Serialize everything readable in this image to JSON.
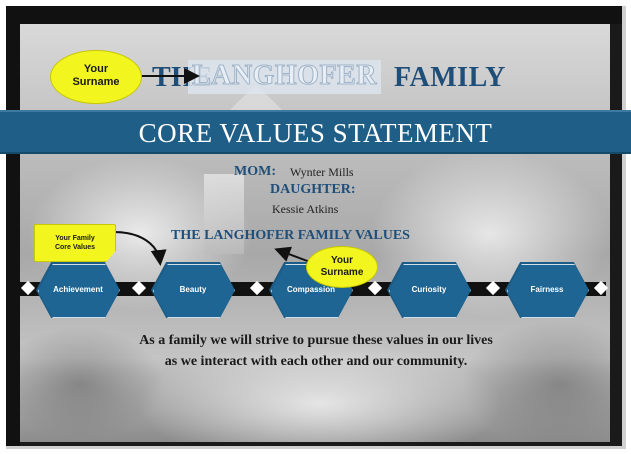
{
  "header": {
    "title_prefix": "THE",
    "surname": "LANGHOFER",
    "title_suffix": "FAMILY"
  },
  "banner": {
    "text": "CORE VALUES STATEMENT"
  },
  "members": {
    "mom_label": "MOM:",
    "mom_name": "Wynter Mills",
    "daughter_label": "DAUGHTER:",
    "daughter_name": "Kessie Atkins"
  },
  "values_heading": "THE LANGHOFER FAMILY VALUES",
  "values": [
    "Achievement",
    "Beauty",
    "Compassion",
    "Curiosity",
    "Fairness"
  ],
  "statement": {
    "line1": "As a family we will strive to pursue these values in our lives",
    "line2": "as we interact with each other and our community."
  },
  "callouts": {
    "top_line1": "Your",
    "top_line2": "Surname",
    "mid_line1": "Your",
    "mid_line2": "Surname",
    "left_line1": "Your Family",
    "left_line2": "Core Values"
  },
  "colors": {
    "banner": "#1f5f87",
    "hex": "#1f6593",
    "title_blue": "#1f4e79",
    "callout_yellow": "#f2f51e"
  }
}
